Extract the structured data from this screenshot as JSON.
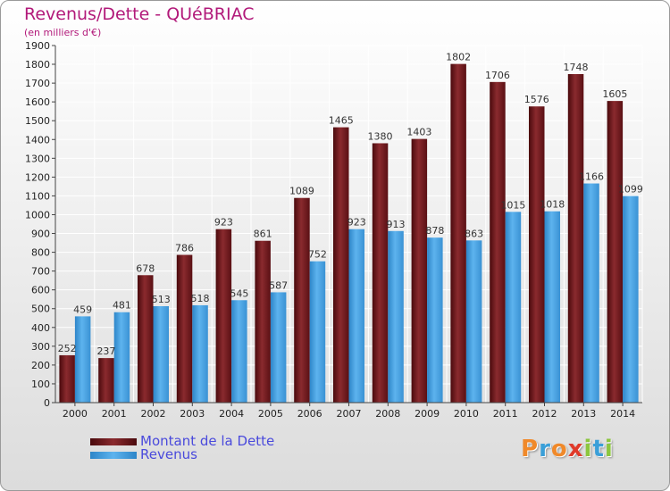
{
  "title": "Revenus/Dette - QUéBRIAC",
  "subtitle": "(en milliers d'€)",
  "logo": "Proxiti",
  "chart_data": {
    "type": "bar",
    "categories": [
      "2000",
      "2001",
      "2002",
      "2003",
      "2004",
      "2005",
      "2006",
      "2007",
      "2008",
      "2009",
      "2010",
      "2011",
      "2012",
      "2013",
      "2014"
    ],
    "series": [
      {
        "name": "Montant de la Dette",
        "values": [
          252,
          237,
          678,
          786,
          923,
          861,
          1089,
          1465,
          1380,
          1403,
          1802,
          1706,
          1576,
          1748,
          1605
        ]
      },
      {
        "name": "Revenus",
        "values": [
          459,
          481,
          513,
          518,
          545,
          587,
          752,
          923,
          913,
          878,
          863,
          1015,
          1018,
          1166,
          1099
        ]
      }
    ],
    "ylim": [
      0,
      1900
    ],
    "yticks": [
      0,
      100,
      200,
      300,
      400,
      500,
      600,
      700,
      800,
      900,
      1000,
      1100,
      1200,
      1300,
      1400,
      1500,
      1600,
      1700,
      1800,
      1900
    ],
    "grid": true,
    "legend_position": "bottom-left",
    "colors": {
      "debt": "#7a1a1e",
      "revenue": "#4aa3e0"
    }
  }
}
